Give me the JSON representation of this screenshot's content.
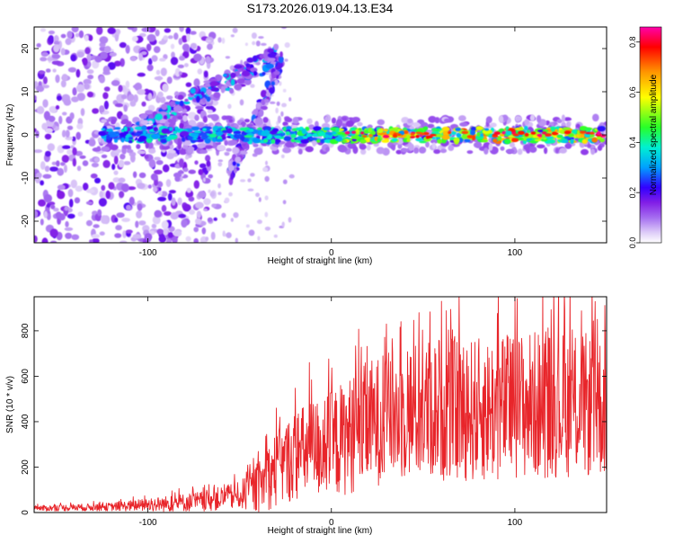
{
  "title": "S173.2026.019.04.13.E34",
  "colors": {
    "snr_line": "#e8252a",
    "axis": "#000000",
    "colormap": [
      "#ffffff",
      "#d9c8f5",
      "#8a2be2",
      "#2400ff",
      "#00a0ff",
      "#00f0c8",
      "#20ff20",
      "#ffff00",
      "#ff9000",
      "#ff0000",
      "#ff00a0"
    ]
  },
  "chart_data": [
    {
      "type": "heatmap",
      "name": "spectrogram",
      "xlabel": "Height of straight line (km)",
      "ylabel": "Frequency (Hz)",
      "xlim": [
        -162,
        150
      ],
      "ylim": [
        -25,
        25
      ],
      "xticks": [
        -100,
        0,
        100
      ],
      "xtick_labels": [
        "-100",
        "0",
        "100"
      ],
      "yticks": [
        -20,
        -10,
        0,
        10,
        20
      ],
      "ytick_labels": [
        "-20",
        "-10",
        "0",
        "10",
        "20"
      ],
      "colorbar": {
        "label": "Normalized spectral amplitude",
        "range": [
          0.0,
          0.86
        ],
        "ticks": [
          0.0,
          0.2,
          0.4,
          0.6,
          0.8
        ],
        "tick_labels": [
          "0.0",
          "0.2",
          "0.4",
          "0.6",
          "0.8"
        ]
      },
      "features": [
        {
          "name": "main-band",
          "x_range": [
            -125,
            148
          ],
          "freq_hz": 0,
          "amplitude_range": [
            0.2,
            0.86
          ]
        },
        {
          "name": "rising-branch-upper",
          "x_range": [
            -110,
            -30
          ],
          "freq_range_hz": [
            0,
            18
          ],
          "amplitude_range": [
            0.1,
            0.35
          ]
        },
        {
          "name": "rising-branch-lower",
          "x_range": [
            -55,
            -28
          ],
          "freq_range_hz": [
            -8,
            16
          ],
          "amplitude_range": [
            0.05,
            0.2
          ]
        },
        {
          "name": "left-noise",
          "x_range": [
            -162,
            -70
          ],
          "freq_range_hz": [
            -25,
            25
          ],
          "amplitude_range": [
            0.0,
            0.15
          ]
        }
      ]
    },
    {
      "type": "line",
      "name": "snr",
      "xlabel": "Height of straight line (km)",
      "ylabel": "SNR (10 * v/v)",
      "xlim": [
        -162,
        150
      ],
      "ylim": [
        0,
        950
      ],
      "xticks": [
        -100,
        0,
        100
      ],
      "xtick_labels": [
        "-100",
        "0",
        "100"
      ],
      "yticks": [
        0,
        200,
        400,
        600,
        800
      ],
      "ytick_labels": [
        "0",
        "200",
        "400",
        "600",
        "800"
      ],
      "series": [
        {
          "name": "SNR",
          "envelope_x": [
            -162,
            -120,
            -90,
            -70,
            -50,
            -40,
            -30,
            -20,
            -10,
            0,
            10,
            20,
            40,
            60,
            80,
            100,
            120,
            140,
            150
          ],
          "envelope_mean": [
            18,
            25,
            38,
            50,
            75,
            110,
            190,
            250,
            280,
            300,
            340,
            390,
            440,
            460,
            450,
            470,
            480,
            470,
            470
          ],
          "envelope_amplitude": [
            12,
            18,
            35,
            45,
            60,
            110,
            170,
            200,
            220,
            240,
            260,
            280,
            300,
            320,
            320,
            330,
            330,
            320,
            320
          ],
          "peaks": [
            {
              "x": -30,
              "y": 460
            },
            {
              "x": -12,
              "y": 660
            },
            {
              "x": 30,
              "y": 830
            },
            {
              "x": 60,
              "y": 930
            },
            {
              "x": 100,
              "y": 950
            },
            {
              "x": 145,
              "y": 850
            }
          ]
        }
      ]
    }
  ]
}
